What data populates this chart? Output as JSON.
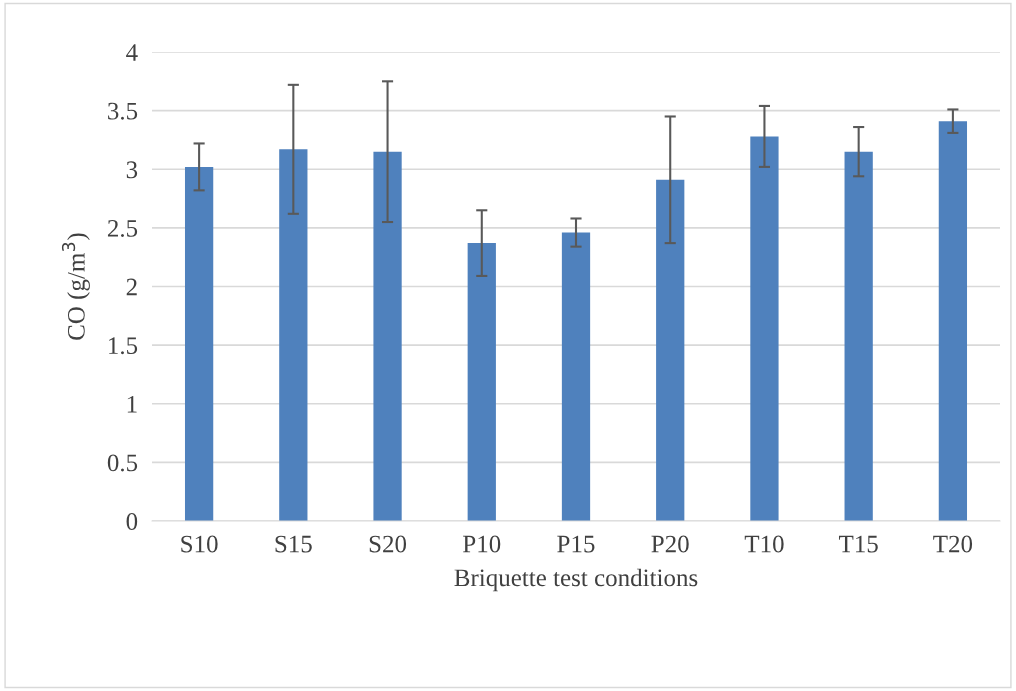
{
  "chart_data": {
    "type": "bar",
    "xlabel": "Briquette test conditions",
    "ylabel": "CO (g/m$^{3}$)",
    "categories": [
      "S10",
      "S15",
      "S20",
      "P10",
      "P15",
      "P20",
      "T10",
      "T15",
      "T20"
    ],
    "values": [
      3.02,
      3.17,
      3.15,
      2.37,
      2.46,
      2.91,
      3.28,
      3.15,
      3.41
    ],
    "errors": [
      0.2,
      0.55,
      0.6,
      0.28,
      0.12,
      0.54,
      0.26,
      0.21,
      0.1
    ],
    "color": "#4f81bd",
    "ylim": [
      0,
      4
    ],
    "yticks": [
      0,
      0.5,
      1,
      1.5,
      2,
      2.5,
      3,
      3.5,
      4
    ],
    "grid": "y"
  }
}
